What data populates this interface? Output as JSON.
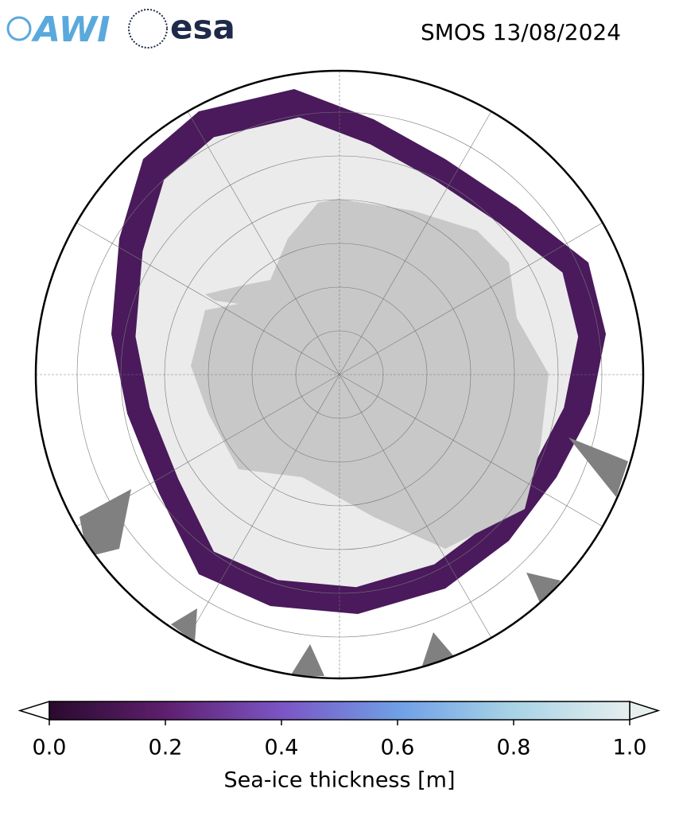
{
  "header": {
    "logos": [
      "AWI",
      "esa"
    ],
    "title": "SMOS 13/08/2024"
  },
  "colorbar": {
    "label": "Sea-ice thickness [m]",
    "lim": [
      0,
      1
    ],
    "ticks": [
      {
        "value": 0,
        "label": "0.0"
      },
      {
        "value": 0.2,
        "label": "0.2"
      },
      {
        "value": 0.4,
        "label": "0.4"
      },
      {
        "value": 0.6,
        "label": "0.6"
      },
      {
        "value": 0.8,
        "label": "0.8"
      },
      {
        "value": 1,
        "label": "1.0"
      }
    ],
    "colors": [
      "#2a0a2e",
      "#5e1f6e",
      "#7b55c4",
      "#6f9fe6",
      "#a8d3e6",
      "#e6eeee"
    ]
  }
}
